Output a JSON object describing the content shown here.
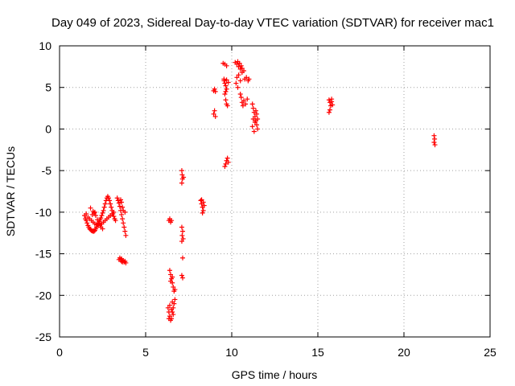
{
  "chart_data": {
    "type": "scatter",
    "title": "Day 049 of 2023, Sidereal Day-to-day VTEC variation (SDTVAR) for receiver mac1",
    "xlabel": "GPS time / hours",
    "ylabel": "SDTVAR / TECUs",
    "xlim": [
      0,
      25
    ],
    "ylim": [
      -25,
      10
    ],
    "xticks": [
      0,
      5,
      10,
      15,
      20,
      25
    ],
    "yticks": [
      -25,
      -20,
      -15,
      -10,
      -5,
      0,
      5,
      10
    ],
    "grid": true,
    "marker": "plus",
    "marker_color": "#ff0000",
    "series": [
      {
        "name": "SDTVAR",
        "points": [
          [
            1.45,
            -10.4
          ],
          [
            1.5,
            -10.8
          ],
          [
            1.55,
            -11.0
          ],
          [
            1.6,
            -11.3
          ],
          [
            1.65,
            -11.6
          ],
          [
            1.7,
            -11.8
          ],
          [
            1.75,
            -12.0
          ],
          [
            1.8,
            -12.1
          ],
          [
            1.85,
            -12.2
          ],
          [
            1.9,
            -12.25
          ],
          [
            1.95,
            -12.3
          ],
          [
            2.0,
            -12.3
          ],
          [
            2.05,
            -12.2
          ],
          [
            2.1,
            -12.0
          ],
          [
            2.15,
            -11.8
          ],
          [
            2.2,
            -11.5
          ],
          [
            2.25,
            -11.3
          ],
          [
            2.3,
            -11.1
          ],
          [
            2.35,
            -10.9
          ],
          [
            2.4,
            -10.7
          ],
          [
            2.45,
            -10.4
          ],
          [
            2.5,
            -10.1
          ],
          [
            2.55,
            -9.8
          ],
          [
            2.6,
            -9.4
          ],
          [
            2.65,
            -9.0
          ],
          [
            2.7,
            -8.6
          ],
          [
            2.75,
            -8.3
          ],
          [
            2.8,
            -8.1
          ],
          [
            2.85,
            -8.3
          ],
          [
            2.9,
            -8.6
          ],
          [
            2.95,
            -9.0
          ],
          [
            3.0,
            -9.4
          ],
          [
            3.05,
            -9.8
          ],
          [
            3.1,
            -10.2
          ],
          [
            3.15,
            -10.5
          ],
          [
            3.2,
            -10.8
          ],
          [
            3.25,
            -11.0
          ],
          [
            1.55,
            -10.2
          ],
          [
            1.65,
            -10.6
          ],
          [
            1.75,
            -10.8
          ],
          [
            1.85,
            -11.0
          ],
          [
            1.95,
            -11.2
          ],
          [
            2.05,
            -11.4
          ],
          [
            2.15,
            -11.5
          ],
          [
            2.25,
            -11.6
          ],
          [
            2.35,
            -11.5
          ],
          [
            2.45,
            -11.4
          ],
          [
            2.55,
            -11.2
          ],
          [
            2.65,
            -11.0
          ],
          [
            2.75,
            -10.8
          ],
          [
            2.85,
            -10.6
          ],
          [
            2.95,
            -10.4
          ],
          [
            3.05,
            -10.2
          ],
          [
            3.15,
            -10.0
          ],
          [
            1.9,
            -10.3
          ],
          [
            2.0,
            -10.1
          ],
          [
            2.1,
            -10.4
          ],
          [
            2.2,
            -10.9
          ],
          [
            2.3,
            -11.3
          ],
          [
            2.4,
            -11.8
          ],
          [
            2.5,
            -12.0
          ],
          [
            1.95,
            -9.9
          ],
          [
            2.05,
            -10.0
          ],
          [
            1.8,
            -9.5
          ],
          [
            3.35,
            -8.3
          ],
          [
            3.4,
            -8.6
          ],
          [
            3.45,
            -8.9
          ],
          [
            3.5,
            -9.3
          ],
          [
            3.55,
            -9.8
          ],
          [
            3.6,
            -10.3
          ],
          [
            3.65,
            -10.8
          ],
          [
            3.7,
            -11.3
          ],
          [
            3.75,
            -11.8
          ],
          [
            3.8,
            -12.3
          ],
          [
            3.85,
            -12.8
          ],
          [
            3.55,
            -8.5
          ],
          [
            3.6,
            -8.8
          ],
          [
            3.65,
            -9.4
          ],
          [
            3.7,
            -9.8
          ],
          [
            3.8,
            -10.0
          ],
          [
            3.5,
            -15.5
          ],
          [
            3.55,
            -15.7
          ],
          [
            3.6,
            -15.9
          ],
          [
            3.65,
            -16.0
          ],
          [
            3.7,
            -15.8
          ],
          [
            3.75,
            -16.0
          ],
          [
            3.8,
            -15.9
          ],
          [
            3.85,
            -16.1
          ],
          [
            3.45,
            -15.7
          ],
          [
            3.6,
            -15.6
          ],
          [
            6.35,
            -11.0
          ],
          [
            6.4,
            -10.8
          ],
          [
            6.5,
            -11.0
          ],
          [
            6.45,
            -11.2
          ],
          [
            6.4,
            -17.0
          ],
          [
            6.45,
            -17.5
          ],
          [
            6.5,
            -18.0
          ],
          [
            6.55,
            -18.5
          ],
          [
            6.6,
            -19.0
          ],
          [
            6.65,
            -19.5
          ],
          [
            6.7,
            -19.3
          ],
          [
            6.45,
            -18.3
          ],
          [
            6.55,
            -17.8
          ],
          [
            6.3,
            -21.5
          ],
          [
            6.35,
            -22.0
          ],
          [
            6.4,
            -22.5
          ],
          [
            6.45,
            -23.0
          ],
          [
            6.5,
            -22.8
          ],
          [
            6.55,
            -22.0
          ],
          [
            6.6,
            -21.5
          ],
          [
            6.65,
            -21.0
          ],
          [
            6.7,
            -20.5
          ],
          [
            6.4,
            -21.2
          ],
          [
            6.5,
            -21.7
          ],
          [
            6.6,
            -22.3
          ],
          [
            6.35,
            -22.8
          ],
          [
            6.55,
            -20.8
          ],
          [
            7.1,
            -5.0
          ],
          [
            7.12,
            -5.5
          ],
          [
            7.14,
            -6.0
          ],
          [
            7.1,
            -6.5
          ],
          [
            7.2,
            -5.8
          ],
          [
            7.1,
            -11.8
          ],
          [
            7.15,
            -12.3
          ],
          [
            7.12,
            -12.8
          ],
          [
            7.18,
            -13.2
          ],
          [
            7.1,
            -13.5
          ],
          [
            7.15,
            -15.5
          ],
          [
            7.1,
            -17.6
          ],
          [
            7.15,
            -17.9
          ],
          [
            8.2,
            -8.6
          ],
          [
            8.25,
            -9.0
          ],
          [
            8.3,
            -9.4
          ],
          [
            8.35,
            -9.8
          ],
          [
            8.4,
            -9.2
          ],
          [
            8.25,
            -8.5
          ],
          [
            8.3,
            -10.1
          ],
          [
            8.35,
            -8.8
          ],
          [
            8.95,
            4.6
          ],
          [
            9.05,
            4.5
          ],
          [
            9.0,
            4.8
          ],
          [
            8.95,
            1.8
          ],
          [
            9.0,
            2.2
          ],
          [
            9.05,
            1.5
          ],
          [
            9.5,
            7.9
          ],
          [
            9.6,
            7.8
          ],
          [
            9.7,
            7.6
          ],
          [
            9.55,
            6.0
          ],
          [
            9.6,
            5.5
          ],
          [
            9.65,
            5.2
          ],
          [
            9.7,
            4.8
          ],
          [
            9.6,
            4.2
          ],
          [
            9.65,
            3.5
          ],
          [
            9.7,
            3.0
          ],
          [
            9.75,
            2.8
          ],
          [
            9.55,
            5.8
          ],
          [
            9.7,
            5.9
          ],
          [
            9.8,
            5.6
          ],
          [
            9.65,
            4.5
          ],
          [
            9.6,
            -4.5
          ],
          [
            9.65,
            -4.2
          ],
          [
            9.7,
            -3.8
          ],
          [
            9.75,
            -3.5
          ],
          [
            9.8,
            -4.0
          ],
          [
            10.2,
            8.0
          ],
          [
            10.3,
            7.8
          ],
          [
            10.4,
            7.5
          ],
          [
            10.5,
            7.2
          ],
          [
            10.35,
            8.1
          ],
          [
            10.45,
            7.9
          ],
          [
            10.55,
            7.6
          ],
          [
            10.6,
            7.3
          ],
          [
            10.7,
            7.0
          ],
          [
            10.4,
            6.5
          ],
          [
            10.3,
            6.2
          ],
          [
            10.25,
            5.5
          ],
          [
            10.35,
            5.0
          ],
          [
            10.5,
            4.2
          ],
          [
            10.55,
            3.8
          ],
          [
            10.6,
            3.2
          ],
          [
            10.65,
            2.8
          ],
          [
            10.7,
            3.4
          ],
          [
            10.8,
            3.0
          ],
          [
            10.9,
            3.6
          ],
          [
            10.75,
            6.0
          ],
          [
            10.85,
            6.2
          ],
          [
            10.95,
            5.8
          ],
          [
            11.0,
            6.0
          ],
          [
            10.6,
            6.8
          ],
          [
            10.5,
            5.8
          ],
          [
            11.2,
            3.0
          ],
          [
            11.25,
            2.5
          ],
          [
            11.3,
            2.0
          ],
          [
            11.35,
            1.5
          ],
          [
            11.4,
            1.0
          ],
          [
            11.45,
            0.5
          ],
          [
            11.5,
            0.0
          ],
          [
            11.3,
            -0.3
          ],
          [
            11.35,
            0.8
          ],
          [
            11.4,
            2.2
          ],
          [
            11.25,
            1.2
          ],
          [
            11.45,
            1.8
          ],
          [
            11.2,
            0.3
          ],
          [
            11.5,
            1.2
          ],
          [
            15.65,
            3.5
          ],
          [
            15.7,
            3.2
          ],
          [
            15.75,
            2.8
          ],
          [
            15.8,
            3.3
          ],
          [
            15.85,
            2.9
          ],
          [
            15.7,
            2.3
          ],
          [
            15.65,
            2.0
          ],
          [
            15.8,
            3.6
          ],
          [
            21.75,
            -0.8
          ],
          [
            21.78,
            -1.2
          ],
          [
            21.75,
            -1.6
          ],
          [
            21.8,
            -1.9
          ]
        ]
      }
    ]
  }
}
